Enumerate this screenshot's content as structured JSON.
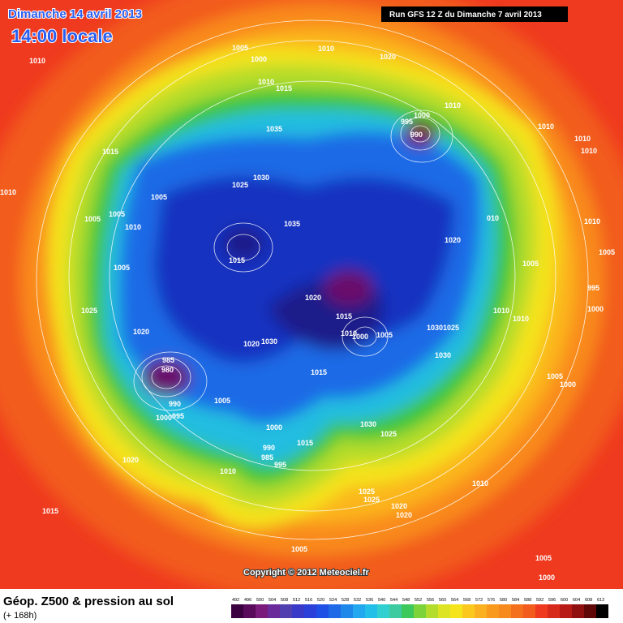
{
  "header": {
    "date": "Dimanche 14 avril 2013",
    "time": "14:00 locale",
    "run": "Run GFS 12 Z du Dimanche 7 avril 2013"
  },
  "map": {
    "pressure_labels": [
      "1005",
      "1000",
      "1010",
      "1020",
      "1010",
      "1010",
      "1015",
      "1035",
      "1000",
      "995",
      "990",
      "1010",
      "1010",
      "1010",
      "1010",
      "1015",
      "1030",
      "1025",
      "1005",
      "1005",
      "1005",
      "1010",
      "1035",
      "1020",
      "1010",
      "1015",
      "1005",
      "1005",
      "1005",
      "1020",
      "1015",
      "1025",
      "1010",
      "1010",
      "995",
      "1000",
      "1020",
      "1010",
      "1000",
      "1005",
      "10301025",
      "1030",
      "1020",
      "1030",
      "985",
      "980",
      "1015",
      "1005",
      "1000",
      "1005",
      "990",
      "1000",
      "995",
      "1030",
      "1000",
      "1025",
      "1015",
      "990",
      "985",
      "995",
      "1020",
      "1010",
      "1010",
      "1025",
      "1025",
      "1020",
      "1020",
      "1015",
      "1005",
      "1005",
      "1000",
      "1010",
      "010",
      "1005"
    ],
    "copyright": "Copyright © 2012 Meteociel.fr"
  },
  "legend": {
    "title": "Géop. Z500 & pression au sol",
    "lead": "(+ 168h)",
    "scale": [
      492,
      496,
      500,
      504,
      508,
      512,
      516,
      520,
      524,
      528,
      532,
      536,
      540,
      544,
      548,
      552,
      556,
      560,
      564,
      568,
      572,
      576,
      580,
      584,
      588,
      592,
      596,
      600,
      604,
      608,
      612
    ]
  }
}
